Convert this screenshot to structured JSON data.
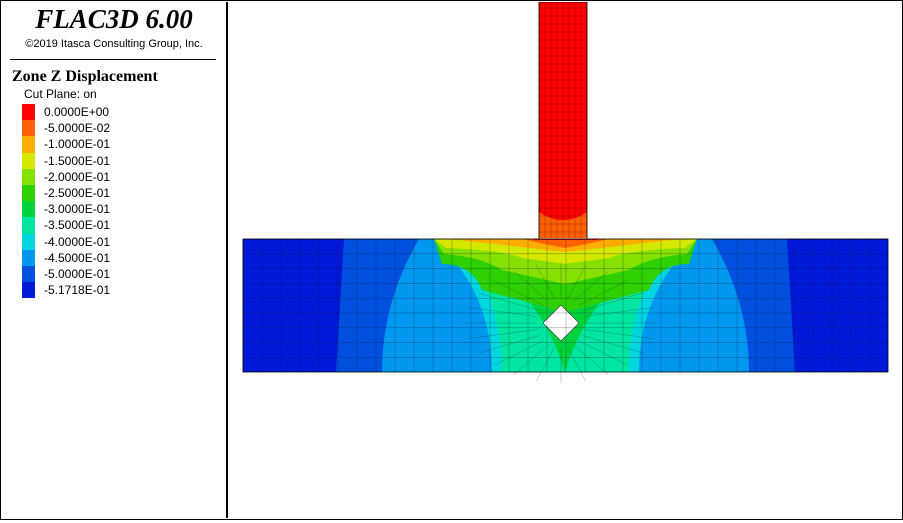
{
  "header": {
    "app_title": "FLAC3D 6.00",
    "copyright": "©2019 Itasca Consulting Group, Inc."
  },
  "legend": {
    "title": "Zone Z Displacement",
    "cut_plane": "Cut Plane: on",
    "entries": [
      {
        "label": "0.0000E+00",
        "color": "#ff0000"
      },
      {
        "label": "-5.0000E-02",
        "color": "#ff6000"
      },
      {
        "label": "-1.0000E-01",
        "color": "#ffae00"
      },
      {
        "label": "-1.5000E-01",
        "color": "#d4e800"
      },
      {
        "label": "-2.0000E-01",
        "color": "#86e000"
      },
      {
        "label": "-2.5000E-01",
        "color": "#2ed000"
      },
      {
        "label": "-3.0000E-01",
        "color": "#00d23c"
      },
      {
        "label": "-3.5000E-01",
        "color": "#00e6a0"
      },
      {
        "label": "-4.0000E-01",
        "color": "#00d6e0"
      },
      {
        "label": "-4.5000E-01",
        "color": "#0098ee"
      },
      {
        "label": "-5.0000E-01",
        "color": "#0050e0"
      },
      {
        "label": "-5.1718E-01",
        "color": "#0018d8"
      }
    ]
  },
  "chart_data": {
    "type": "heatmap",
    "title": "Zone Z Displacement",
    "field": "Z displacement",
    "min": -0.51718,
    "max": 0.0,
    "interval": 0.05,
    "cut_plane": "on",
    "model": {
      "parts": [
        "column",
        "foundation soil block",
        "tunnel opening"
      ],
      "tunnel_shape": "square rotated 45 degrees"
    }
  }
}
